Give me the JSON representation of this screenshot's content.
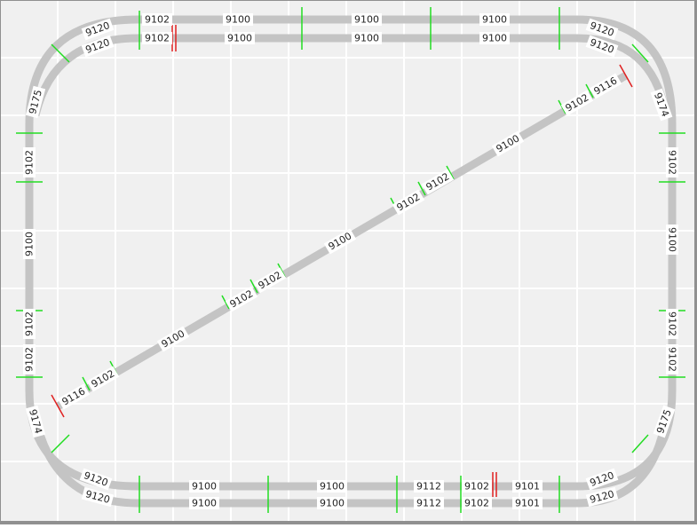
{
  "track_labels": {
    "top_outer": [
      "9120",
      "9102",
      "9100",
      "9100",
      "9100",
      "9120"
    ],
    "top_inner": [
      "9120",
      "9102",
      "9100",
      "9100",
      "9100",
      "9120"
    ],
    "left": [
      "9175",
      "9102",
      "9100",
      "9102",
      "9102",
      "9174"
    ],
    "right": [
      "9174",
      "9102",
      "9100",
      "9102",
      "9102",
      "9175"
    ],
    "diagonal": [
      "9116",
      "9102",
      "9100",
      "9102",
      "9102",
      "9100",
      "9102",
      "9102",
      "9100",
      "9102",
      "9116"
    ],
    "bottom_outer": [
      "9120",
      "9100",
      "9100",
      "9112",
      "9102",
      "9101",
      "9120"
    ],
    "bottom_inner": [
      "9120",
      "9100",
      "9100",
      "9112",
      "9102",
      "9101",
      "9120"
    ]
  }
}
